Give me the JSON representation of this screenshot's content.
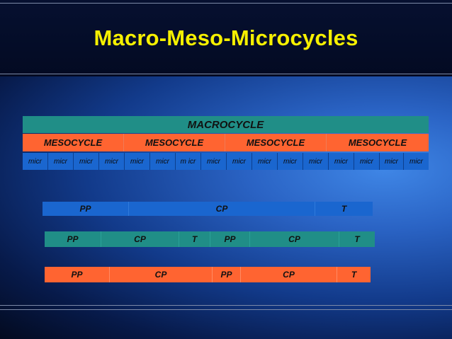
{
  "title": "Macro-Meso-Microcycles",
  "colors": {
    "title": "#f6f000",
    "teal": "#208e87",
    "orange": "#ff6431",
    "blue": "#1a66cf"
  },
  "macrocycle": {
    "label": "MACROCYCLE"
  },
  "mesocycles": [
    "MESOCYCLE",
    "MESOCYCLE",
    "MESOCYCLE",
    "MESOCYCLE"
  ],
  "microcycles": [
    "micr",
    "micr",
    "micr",
    "micr",
    "micr",
    "micr",
    "m icr",
    "micr",
    "micr",
    "micr",
    "micr",
    "micr",
    "micr",
    "micr",
    "micr",
    "micr"
  ],
  "periodization_rows": [
    {
      "name": "single-peak",
      "phases": [
        "PP",
        "CP",
        "T"
      ]
    },
    {
      "name": "double-peak",
      "phases": [
        "PP",
        "CP",
        "T",
        "PP",
        "CP",
        "T"
      ]
    },
    {
      "name": "double-peak-alt",
      "phases": [
        "PP",
        "CP",
        "PP",
        "CP",
        "T"
      ]
    }
  ]
}
